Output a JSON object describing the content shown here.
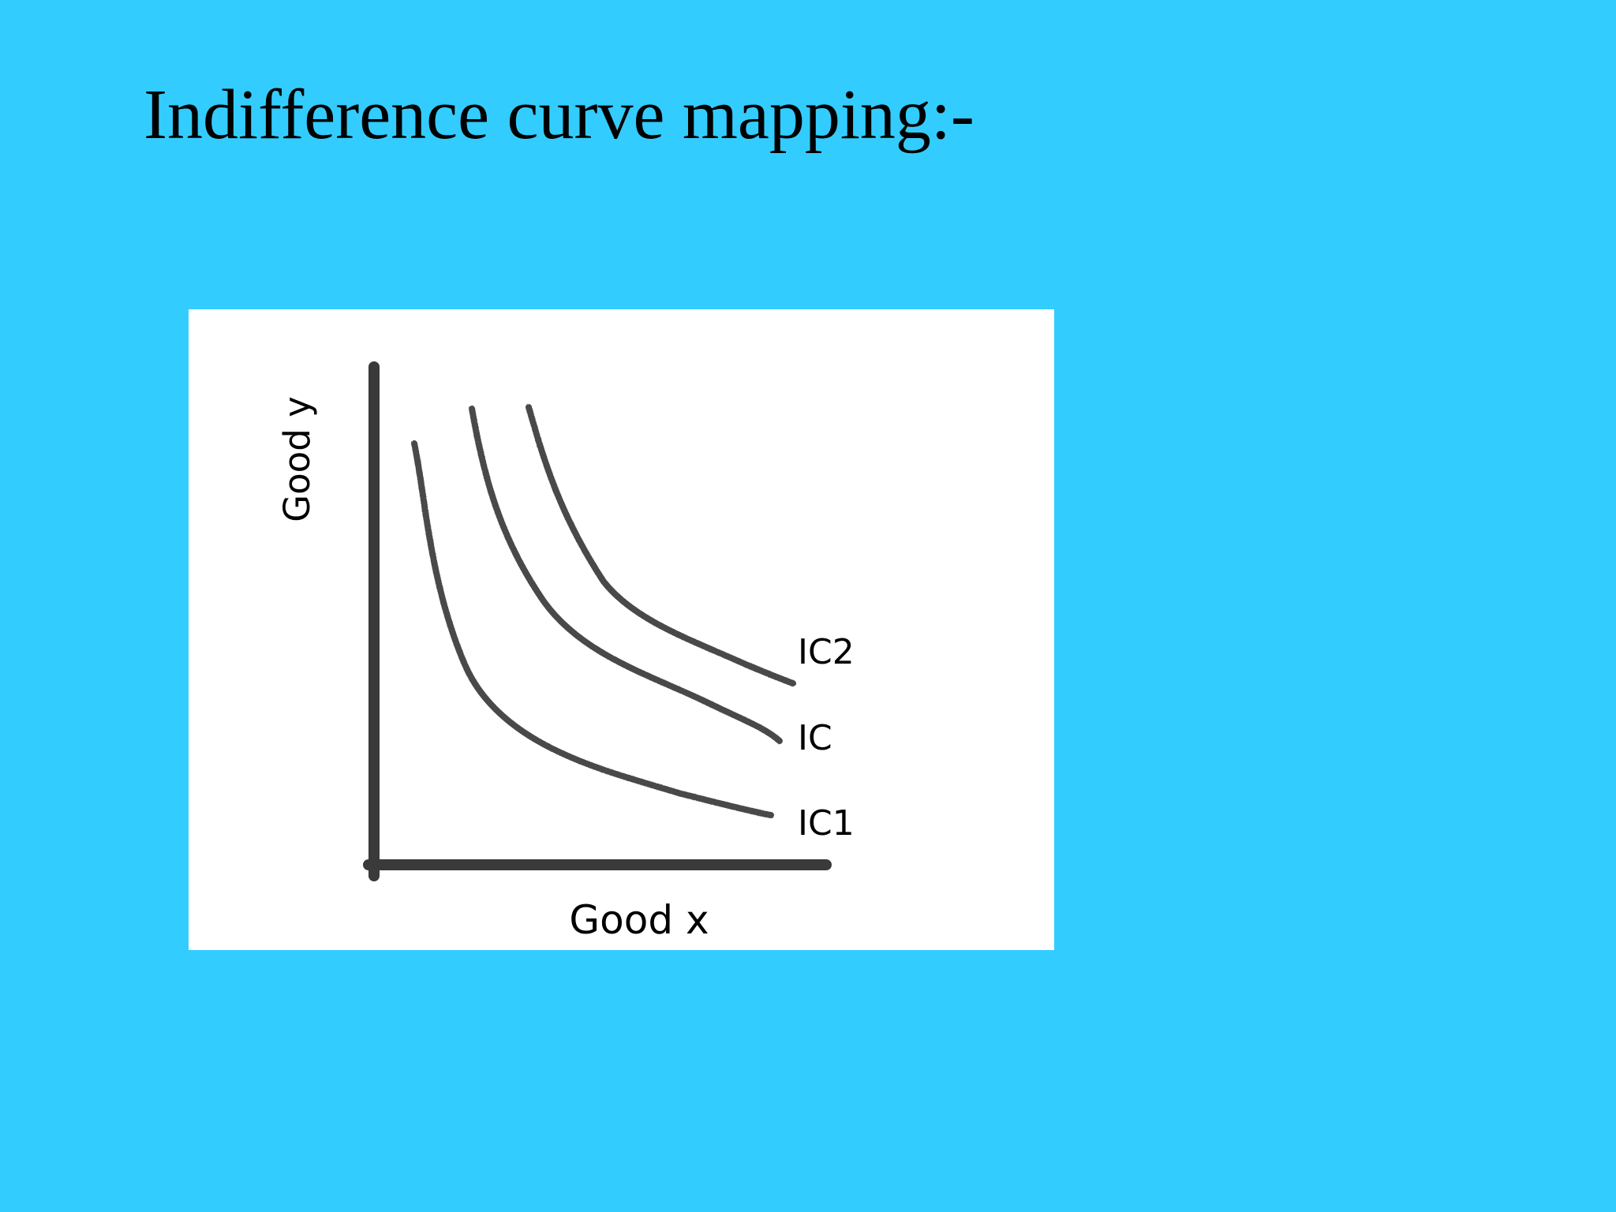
{
  "colors": {
    "background": "#33ccff",
    "panel": "#ffffff",
    "axis": "#3a3a3a",
    "curve": "#4a4a4a",
    "text": "#000000"
  },
  "slide": {
    "title": "Indifference curve mapping:-"
  },
  "diagram": {
    "x_axis_label": "Good x",
    "y_axis_label": "Good y",
    "curves": [
      {
        "name": "IC2",
        "level": 3
      },
      {
        "name": "IC",
        "level": 2
      },
      {
        "name": "IC1",
        "level": 1
      }
    ]
  }
}
